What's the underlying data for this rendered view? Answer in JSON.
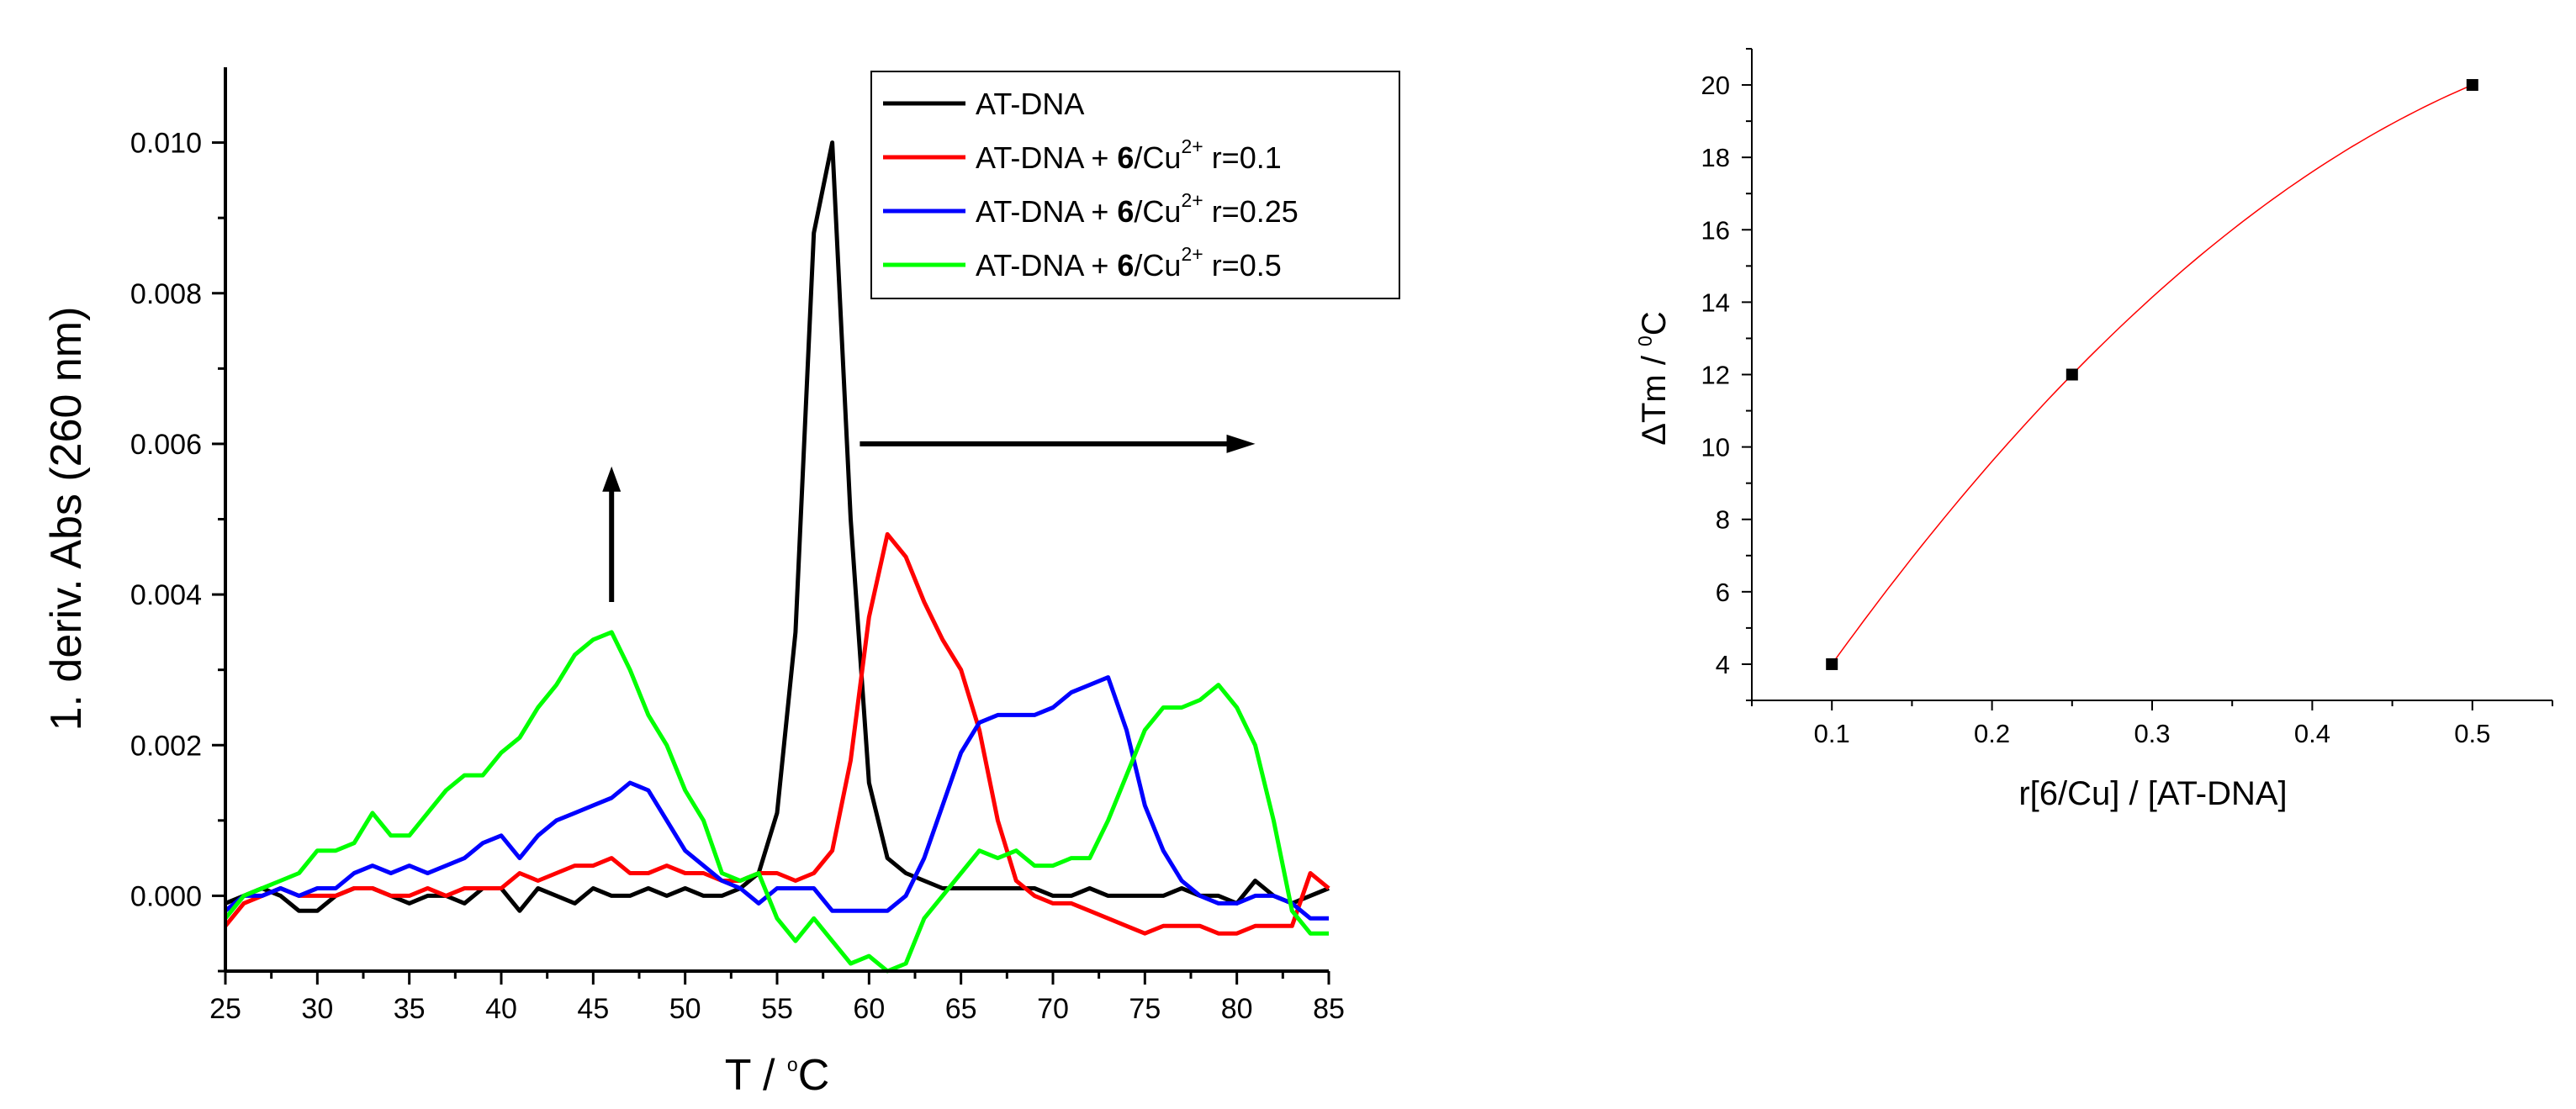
{
  "chart_data": [
    {
      "type": "line",
      "xlabel_prefix": "T / ",
      "xlabel_sup": "o",
      "xlabel_suffix": "C",
      "ylabel": "1. deriv. Abs (260 nm)",
      "xlim": [
        25,
        85
      ],
      "ylim": [
        -0.001,
        0.011
      ],
      "x_ticks": [
        "25",
        "30",
        "35",
        "40",
        "45",
        "50",
        "55",
        "60",
        "65",
        "70",
        "75",
        "80",
        "85"
      ],
      "x_tick_values": [
        25,
        30,
        35,
        40,
        45,
        50,
        55,
        60,
        65,
        70,
        75,
        80,
        85
      ],
      "y_ticks": [
        "0.000",
        "0.002",
        "0.004",
        "0.006",
        "0.008",
        "0.010"
      ],
      "y_tick_values": [
        0,
        0.002,
        0.004,
        0.006,
        0.008,
        0.01
      ],
      "legend_position": "top-right",
      "series": [
        {
          "name": "AT-DNA",
          "legend_prefix": "AT-DNA",
          "legend_bold": "",
          "legend_mid": "",
          "legend_sup": "",
          "legend_suffix": "",
          "color": "#000000",
          "x": [
            25,
            26,
            27,
            28,
            29,
            30,
            31,
            32,
            33,
            34,
            35,
            36,
            37,
            38,
            39,
            40,
            41,
            42,
            43,
            44,
            45,
            46,
            47,
            48,
            49,
            50,
            51,
            52,
            53,
            54,
            55,
            56,
            57,
            58,
            59,
            60,
            61,
            62,
            63,
            64,
            65,
            66,
            67,
            68,
            69,
            70,
            71,
            72,
            73,
            74,
            75,
            76,
            77,
            78,
            79,
            80,
            81,
            82,
            83,
            84,
            85
          ],
          "values": [
            -0.0001,
            0.0,
            0.0001,
            0.0,
            -0.0002,
            -0.0002,
            0.0,
            0.0001,
            0.0001,
            0.0,
            -0.0001,
            0.0,
            0.0,
            -0.0001,
            0.0001,
            0.0001,
            -0.0002,
            0.0001,
            0.0,
            -0.0001,
            0.0001,
            0.0,
            0.0,
            0.0001,
            0.0,
            0.0001,
            0.0,
            0.0,
            0.0001,
            0.0003,
            0.0011,
            0.0035,
            0.0088,
            0.01,
            0.005,
            0.0015,
            0.0005,
            0.0003,
            0.0002,
            0.0001,
            0.0001,
            0.0001,
            0.0001,
            0.0001,
            0.0001,
            0.0,
            0.0,
            0.0001,
            0.0,
            0.0,
            0.0,
            0.0,
            0.0001,
            0.0,
            0.0,
            -0.0001,
            0.0002,
            0.0,
            -0.0001,
            0.0,
            0.0001
          ]
        },
        {
          "name": "AT-DNA + 6/Cu2+ r=0.1",
          "legend_prefix": "AT-DNA + ",
          "legend_bold": "6",
          "legend_mid": "/Cu",
          "legend_sup": "2+",
          "legend_suffix": " r=0.1",
          "color": "#ff0000",
          "x": [
            25,
            26,
            27,
            28,
            29,
            30,
            31,
            32,
            33,
            34,
            35,
            36,
            37,
            38,
            39,
            40,
            41,
            42,
            43,
            44,
            45,
            46,
            47,
            48,
            49,
            50,
            51,
            52,
            53,
            54,
            55,
            56,
            57,
            58,
            59,
            60,
            61,
            62,
            63,
            64,
            65,
            66,
            67,
            68,
            69,
            70,
            71,
            72,
            73,
            74,
            75,
            76,
            77,
            78,
            79,
            80,
            81,
            82,
            83,
            84,
            85
          ],
          "values": [
            -0.0004,
            -0.0001,
            0.0,
            0.0001,
            0.0,
            0.0,
            0.0,
            0.0001,
            0.0001,
            0.0,
            0.0,
            0.0001,
            0.0,
            0.0001,
            0.0001,
            0.0001,
            0.0003,
            0.0002,
            0.0003,
            0.0004,
            0.0004,
            0.0005,
            0.0003,
            0.0003,
            0.0004,
            0.0003,
            0.0003,
            0.0002,
            0.0002,
            0.0003,
            0.0003,
            0.0002,
            0.0003,
            0.0006,
            0.0018,
            0.0037,
            0.0048,
            0.0045,
            0.0039,
            0.0034,
            0.003,
            0.0022,
            0.001,
            0.0002,
            0.0,
            -0.0001,
            -0.0001,
            -0.0002,
            -0.0003,
            -0.0004,
            -0.0005,
            -0.0004,
            -0.0004,
            -0.0004,
            -0.0005,
            -0.0005,
            -0.0004,
            -0.0004,
            -0.0004,
            0.0003,
            0.0001
          ]
        },
        {
          "name": "AT-DNA + 6/Cu2+ r=0.25",
          "legend_prefix": "AT-DNA + ",
          "legend_bold": "6",
          "legend_mid": "/Cu",
          "legend_sup": "2+",
          "legend_suffix": " r=0.25",
          "color": "#0000ff",
          "x": [
            25,
            26,
            27,
            28,
            29,
            30,
            31,
            32,
            33,
            34,
            35,
            36,
            37,
            38,
            39,
            40,
            41,
            42,
            43,
            44,
            45,
            46,
            47,
            48,
            49,
            50,
            51,
            52,
            53,
            54,
            55,
            56,
            57,
            58,
            59,
            60,
            61,
            62,
            63,
            64,
            65,
            66,
            67,
            68,
            69,
            70,
            71,
            72,
            73,
            74,
            75,
            76,
            77,
            78,
            79,
            80,
            81,
            82,
            83,
            84,
            85
          ],
          "values": [
            -0.0002,
            0.0,
            0.0,
            0.0001,
            0.0,
            0.0001,
            0.0001,
            0.0003,
            0.0004,
            0.0003,
            0.0004,
            0.0003,
            0.0004,
            0.0005,
            0.0007,
            0.0008,
            0.0005,
            0.0008,
            0.001,
            0.0011,
            0.0012,
            0.0013,
            0.0015,
            0.0014,
            0.001,
            0.0006,
            0.0004,
            0.0002,
            0.0001,
            -0.0001,
            0.0001,
            0.0001,
            0.0001,
            -0.0002,
            -0.0002,
            -0.0002,
            -0.0002,
            0.0,
            0.0005,
            0.0012,
            0.0019,
            0.0023,
            0.0024,
            0.0024,
            0.0024,
            0.0025,
            0.0027,
            0.0028,
            0.0029,
            0.0022,
            0.0012,
            0.0006,
            0.0002,
            0.0,
            -0.0001,
            -0.0001,
            0.0,
            0.0,
            -0.0001,
            -0.0003,
            -0.0003
          ]
        },
        {
          "name": "AT-DNA + 6/Cu2+ r=0.5",
          "legend_prefix": "AT-DNA + ",
          "legend_bold": "6",
          "legend_mid": "/Cu",
          "legend_sup": "2+",
          "legend_suffix": " r=0.5",
          "color": "#00ff00",
          "x": [
            25,
            26,
            27,
            28,
            29,
            30,
            31,
            32,
            33,
            34,
            35,
            36,
            37,
            38,
            39,
            40,
            41,
            42,
            43,
            44,
            45,
            46,
            47,
            48,
            49,
            50,
            51,
            52,
            53,
            54,
            55,
            56,
            57,
            58,
            59,
            60,
            61,
            62,
            63,
            64,
            65,
            66,
            67,
            68,
            69,
            70,
            71,
            72,
            73,
            74,
            75,
            76,
            77,
            78,
            79,
            80,
            81,
            82,
            83,
            84,
            85
          ],
          "values": [
            -0.0003,
            0.0,
            0.0001,
            0.0002,
            0.0003,
            0.0006,
            0.0006,
            0.0007,
            0.0011,
            0.0008,
            0.0008,
            0.0011,
            0.0014,
            0.0016,
            0.0016,
            0.0019,
            0.0021,
            0.0025,
            0.0028,
            0.0032,
            0.0034,
            0.0035,
            0.003,
            0.0024,
            0.002,
            0.0014,
            0.001,
            0.0003,
            0.0002,
            0.0003,
            -0.0003,
            -0.0006,
            -0.0003,
            -0.0006,
            -0.0009,
            -0.0008,
            -0.001,
            -0.0009,
            -0.0003,
            0.0,
            0.0003,
            0.0006,
            0.0005,
            0.0006,
            0.0004,
            0.0004,
            0.0005,
            0.0005,
            0.001,
            0.0016,
            0.0022,
            0.0025,
            0.0025,
            0.0026,
            0.0028,
            0.0025,
            0.002,
            0.001,
            -0.0002,
            -0.0005,
            -0.0005
          ]
        }
      ],
      "annotations": [
        {
          "type": "arrow",
          "direction": "up",
          "from": [
            46,
            0.0039
          ],
          "to": [
            46,
            0.0057
          ],
          "color": "#000000"
        },
        {
          "type": "arrow",
          "direction": "right",
          "from": [
            59.5,
            0.006
          ],
          "to": [
            81,
            0.006
          ],
          "color": "#000000"
        }
      ]
    },
    {
      "type": "scatter",
      "xlabel": "r[6/Cu] / [AT-DNA]",
      "ylabel_prefix": "ΔTm / ",
      "ylabel_sup": "0",
      "ylabel_suffix": "C",
      "xlim": [
        0.05,
        0.55
      ],
      "ylim": [
        3,
        21
      ],
      "x_ticks": [
        "0.1",
        "0.2",
        "0.3",
        "0.4",
        "0.5"
      ],
      "x_tick_values": [
        0.1,
        0.2,
        0.3,
        0.4,
        0.5
      ],
      "y_ticks": [
        "4",
        "6",
        "8",
        "10",
        "12",
        "14",
        "16",
        "18",
        "20"
      ],
      "y_tick_values": [
        4,
        6,
        8,
        10,
        12,
        14,
        16,
        18,
        20
      ],
      "marker_color": "#000000",
      "fit_color": "#ff0000",
      "x": [
        0.1,
        0.25,
        0.5
      ],
      "values": [
        4,
        12,
        20
      ]
    }
  ]
}
